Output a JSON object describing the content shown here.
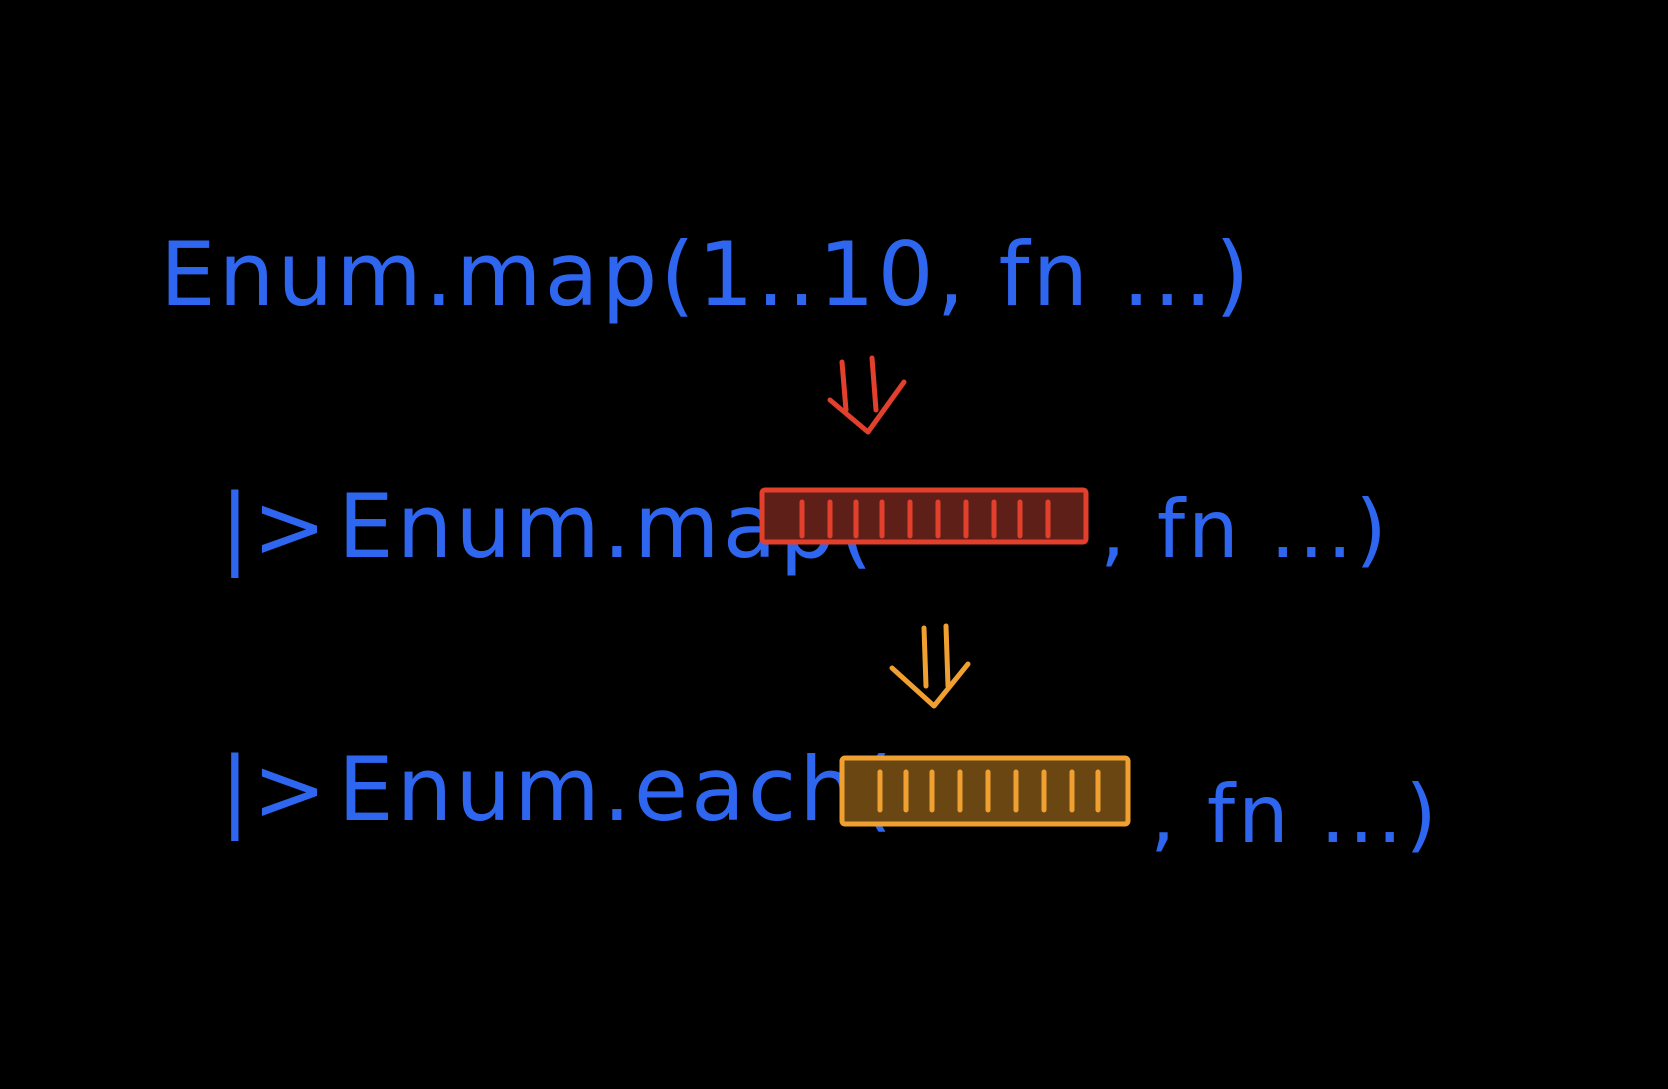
{
  "lines": [
    {
      "id": "line1",
      "text": "Enum.map(1..10, fn ...)"
    },
    {
      "pipe": "|>",
      "func": "Enum.map(",
      "tail": ", fn ...)"
    },
    {
      "pipe": "|>",
      "func": "Enum.each(",
      "tail": ", fn ...)"
    }
  ],
  "colors": {
    "background": "#000000",
    "ink": "#2f66f0",
    "list_red_stroke": "#e2402c",
    "list_red_fill": "#5e1f18",
    "list_orange_stroke": "#f0a030",
    "list_orange_fill": "#6a4712",
    "arrow_red": "#e2402c",
    "arrow_orange": "#f0a030"
  },
  "icons": {
    "arrow1": "double-down-arrow-icon",
    "arrow2": "double-down-arrow-icon"
  }
}
